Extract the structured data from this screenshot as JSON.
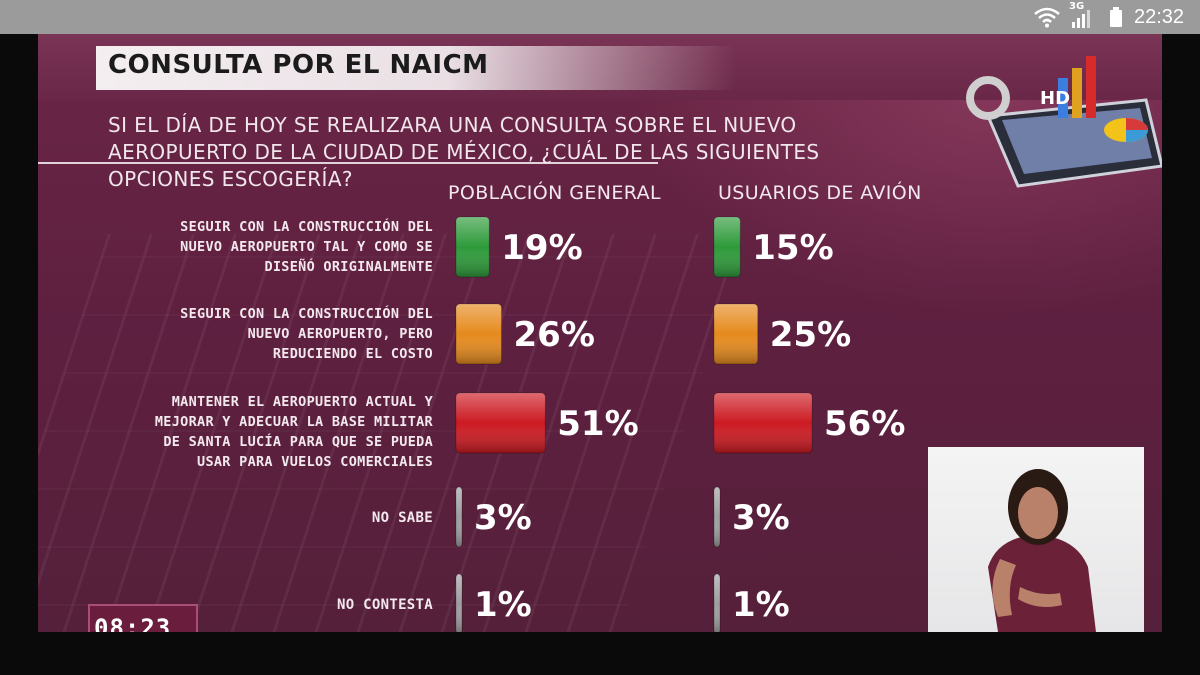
{
  "status_bar": {
    "time": "22:32",
    "network": "3G",
    "icons": [
      "wifi-icon",
      "signal-icon",
      "battery-icon"
    ]
  },
  "broadcast": {
    "timer": "08:23",
    "logo_text": "HD"
  },
  "colors": {
    "green": "#2e9a3a",
    "orange": "#e58a1d",
    "red": "#cc1a22",
    "gray": "#9e9e9e",
    "background": "#5f2040"
  },
  "chart_data": {
    "type": "bar",
    "title": "CONSULTA POR EL NAICM",
    "question": "SI EL DÍA DE HOY SE REALIZARA UNA CONSULTA SOBRE EL NUEVO AEROPUERTO DE LA CIUDAD DE MÉXICO, ¿CUÁL DE LAS SIGUIENTES OPCIONES ESCOGERÍA?",
    "orientation": "horizontal",
    "categories": [
      "SEGUIR CON LA CONSTRUCCIÓN DEL NUEVO AEROPUERTO TAL Y COMO SE DISEÑÓ ORIGINALMENTE",
      "SEGUIR CON LA CONSTRUCCIÓN DEL NUEVO AEROPUERTO, PERO REDUCIENDO EL COSTO",
      "MANTENER EL AEROPUERTO ACTUAL Y MEJORAR Y ADECUAR LA BASE MILITAR DE SANTA LUCÍA PARA QUE SE PUEDA USAR PARA VUELOS COMERCIALES",
      "NO SABE",
      "NO CONTESTA"
    ],
    "category_lines": [
      [
        "SEGUIR CON LA CONSTRUCCIÓN DEL",
        "NUEVO AEROPUERTO TAL Y COMO SE",
        "DISEÑÓ ORIGINALMENTE"
      ],
      [
        "SEGUIR CON LA CONSTRUCCIÓN DEL",
        "NUEVO AEROPUERTO, PERO",
        "REDUCIENDO EL COSTO"
      ],
      [
        "MANTENER EL AEROPUERTO ACTUAL Y",
        "MEJORAR Y ADECUAR LA BASE MILITAR",
        "DE SANTA LUCÍA PARA QUE SE PUEDA",
        "USAR PARA VUELOS COMERCIALES"
      ],
      [
        "NO SABE"
      ],
      [
        "NO CONTESTA"
      ]
    ],
    "bar_colors": [
      "#2e9a3a",
      "#e58a1d",
      "#cc1a22",
      "#9e9e9e",
      "#9e9e9e"
    ],
    "series": [
      {
        "name": "POBLACIÓN GENERAL",
        "values": [
          19,
          26,
          51,
          3,
          1
        ],
        "labels": [
          "19%",
          "26%",
          "51%",
          "3%",
          "1%"
        ]
      },
      {
        "name": "USUARIOS DE AVIÓN",
        "values": [
          15,
          25,
          56,
          3,
          1
        ],
        "labels": [
          "15%",
          "25%",
          "56%",
          "3%",
          "1%"
        ]
      }
    ],
    "unit": "%",
    "grid": false,
    "legend": "column headers at top"
  }
}
